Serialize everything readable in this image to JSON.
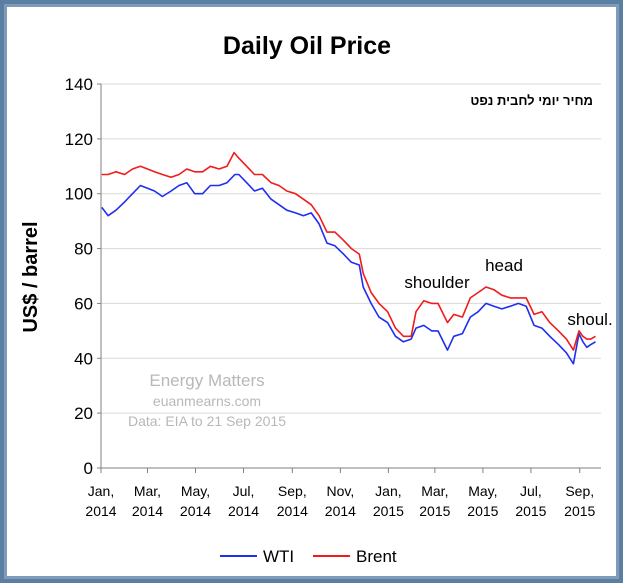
{
  "chart_data": {
    "type": "line",
    "title": "Daily Oil Price",
    "subtitle_hebrew": "מחיר יומי לחבית נפט",
    "ylabel": "US$ / barrel",
    "xlabel": "",
    "ylim": [
      0,
      140
    ],
    "yticks": [
      0,
      20,
      40,
      60,
      80,
      100,
      120,
      140
    ],
    "xlim": [
      "2014-01-01",
      "2015-09-28"
    ],
    "xticks": [
      {
        "date": "2014-01-01",
        "line1": "Jan,",
        "line2": "2014"
      },
      {
        "date": "2014-03-01",
        "line1": "Mar,",
        "line2": "2014"
      },
      {
        "date": "2014-05-01",
        "line1": "May,",
        "line2": "2014"
      },
      {
        "date": "2014-07-01",
        "line1": "Jul,",
        "line2": "2014"
      },
      {
        "date": "2014-09-01",
        "line1": "Sep,",
        "line2": "2014"
      },
      {
        "date": "2014-11-01",
        "line1": "Nov,",
        "line2": "2014"
      },
      {
        "date": "2015-01-01",
        "line1": "Jan,",
        "line2": "2015"
      },
      {
        "date": "2015-03-01",
        "line1": "Mar,",
        "line2": "2015"
      },
      {
        "date": "2015-05-01",
        "line1": "May,",
        "line2": "2015"
      },
      {
        "date": "2015-07-01",
        "line1": "Jul,",
        "line2": "2015"
      },
      {
        "date": "2015-09-01",
        "line1": "Sep,",
        "line2": "2015"
      }
    ],
    "grid": true,
    "legend_position": "bottom",
    "series": [
      {
        "name": "WTI",
        "color": "#1e2ff0",
        "points": [
          [
            "2014-01-02",
            95
          ],
          [
            "2014-01-10",
            92
          ],
          [
            "2014-01-20",
            94
          ],
          [
            "2014-01-31",
            97
          ],
          [
            "2014-02-10",
            100
          ],
          [
            "2014-02-20",
            103
          ],
          [
            "2014-03-01",
            102
          ],
          [
            "2014-03-10",
            101
          ],
          [
            "2014-03-20",
            99
          ],
          [
            "2014-03-31",
            101
          ],
          [
            "2014-04-10",
            103
          ],
          [
            "2014-04-20",
            104
          ],
          [
            "2014-04-30",
            100
          ],
          [
            "2014-05-10",
            100
          ],
          [
            "2014-05-20",
            103
          ],
          [
            "2014-05-31",
            103
          ],
          [
            "2014-06-10",
            104
          ],
          [
            "2014-06-20",
            107
          ],
          [
            "2014-06-25",
            107
          ],
          [
            "2014-07-05",
            104
          ],
          [
            "2014-07-15",
            101
          ],
          [
            "2014-07-25",
            102
          ],
          [
            "2014-08-05",
            98
          ],
          [
            "2014-08-15",
            96
          ],
          [
            "2014-08-25",
            94
          ],
          [
            "2014-09-05",
            93
          ],
          [
            "2014-09-15",
            92
          ],
          [
            "2014-09-25",
            93
          ],
          [
            "2014-10-05",
            89
          ],
          [
            "2014-10-15",
            82
          ],
          [
            "2014-10-25",
            81
          ],
          [
            "2014-11-05",
            78
          ],
          [
            "2014-11-15",
            75
          ],
          [
            "2014-11-25",
            74
          ],
          [
            "2014-11-30",
            66
          ],
          [
            "2014-12-10",
            60
          ],
          [
            "2014-12-20",
            55
          ],
          [
            "2014-12-31",
            53
          ],
          [
            "2015-01-10",
            48
          ],
          [
            "2015-01-20",
            46
          ],
          [
            "2015-01-30",
            47
          ],
          [
            "2015-02-05",
            51
          ],
          [
            "2015-02-15",
            52
          ],
          [
            "2015-02-25",
            50
          ],
          [
            "2015-03-05",
            50
          ],
          [
            "2015-03-17",
            43
          ],
          [
            "2015-03-25",
            48
          ],
          [
            "2015-04-05",
            49
          ],
          [
            "2015-04-15",
            55
          ],
          [
            "2015-04-25",
            57
          ],
          [
            "2015-05-05",
            60
          ],
          [
            "2015-05-15",
            59
          ],
          [
            "2015-05-25",
            58
          ],
          [
            "2015-06-05",
            59
          ],
          [
            "2015-06-15",
            60
          ],
          [
            "2015-06-25",
            59
          ],
          [
            "2015-07-05",
            52
          ],
          [
            "2015-07-15",
            51
          ],
          [
            "2015-07-25",
            48
          ],
          [
            "2015-08-05",
            45
          ],
          [
            "2015-08-15",
            42
          ],
          [
            "2015-08-24",
            38
          ],
          [
            "2015-08-31",
            49
          ],
          [
            "2015-09-05",
            46
          ],
          [
            "2015-09-10",
            44
          ],
          [
            "2015-09-15",
            45
          ],
          [
            "2015-09-21",
            46
          ]
        ]
      },
      {
        "name": "Brent",
        "color": "#f01c1c",
        "points": [
          [
            "2014-01-02",
            107
          ],
          [
            "2014-01-10",
            107
          ],
          [
            "2014-01-20",
            108
          ],
          [
            "2014-01-31",
            107
          ],
          [
            "2014-02-10",
            109
          ],
          [
            "2014-02-20",
            110
          ],
          [
            "2014-03-01",
            109
          ],
          [
            "2014-03-10",
            108
          ],
          [
            "2014-03-20",
            107
          ],
          [
            "2014-03-31",
            106
          ],
          [
            "2014-04-10",
            107
          ],
          [
            "2014-04-20",
            109
          ],
          [
            "2014-04-30",
            108
          ],
          [
            "2014-05-10",
            108
          ],
          [
            "2014-05-20",
            110
          ],
          [
            "2014-05-31",
            109
          ],
          [
            "2014-06-10",
            110
          ],
          [
            "2014-06-19",
            115
          ],
          [
            "2014-06-25",
            113
          ],
          [
            "2014-07-05",
            110
          ],
          [
            "2014-07-15",
            107
          ],
          [
            "2014-07-25",
            107
          ],
          [
            "2014-08-05",
            104
          ],
          [
            "2014-08-15",
            103
          ],
          [
            "2014-08-25",
            101
          ],
          [
            "2014-09-05",
            100
          ],
          [
            "2014-09-15",
            98
          ],
          [
            "2014-09-25",
            96
          ],
          [
            "2014-10-05",
            92
          ],
          [
            "2014-10-15",
            86
          ],
          [
            "2014-10-25",
            86
          ],
          [
            "2014-11-05",
            83
          ],
          [
            "2014-11-15",
            80
          ],
          [
            "2014-11-25",
            78
          ],
          [
            "2014-11-30",
            71
          ],
          [
            "2014-12-10",
            64
          ],
          [
            "2014-12-20",
            60
          ],
          [
            "2014-12-31",
            57
          ],
          [
            "2015-01-10",
            51
          ],
          [
            "2015-01-20",
            48
          ],
          [
            "2015-01-30",
            48
          ],
          [
            "2015-02-05",
            57
          ],
          [
            "2015-02-15",
            61
          ],
          [
            "2015-02-25",
            60
          ],
          [
            "2015-03-05",
            60
          ],
          [
            "2015-03-17",
            53
          ],
          [
            "2015-03-25",
            56
          ],
          [
            "2015-04-05",
            55
          ],
          [
            "2015-04-15",
            62
          ],
          [
            "2015-04-25",
            64
          ],
          [
            "2015-05-05",
            66
          ],
          [
            "2015-05-15",
            65
          ],
          [
            "2015-05-25",
            63
          ],
          [
            "2015-06-05",
            62
          ],
          [
            "2015-06-15",
            62
          ],
          [
            "2015-06-25",
            62
          ],
          [
            "2015-07-05",
            56
          ],
          [
            "2015-07-15",
            57
          ],
          [
            "2015-07-25",
            53
          ],
          [
            "2015-08-05",
            50
          ],
          [
            "2015-08-15",
            47
          ],
          [
            "2015-08-24",
            43
          ],
          [
            "2015-08-31",
            50
          ],
          [
            "2015-09-05",
            48
          ],
          [
            "2015-09-10",
            47
          ],
          [
            "2015-09-15",
            47
          ],
          [
            "2015-09-21",
            48
          ]
        ]
      }
    ],
    "annotations": [
      {
        "text": "shoulder"
      },
      {
        "text": "head"
      },
      {
        "text": "shoul."
      }
    ],
    "watermark": [
      "Energy Matters",
      "euanmearns.com",
      "Data: EIA to 21 Sep 2015"
    ]
  }
}
